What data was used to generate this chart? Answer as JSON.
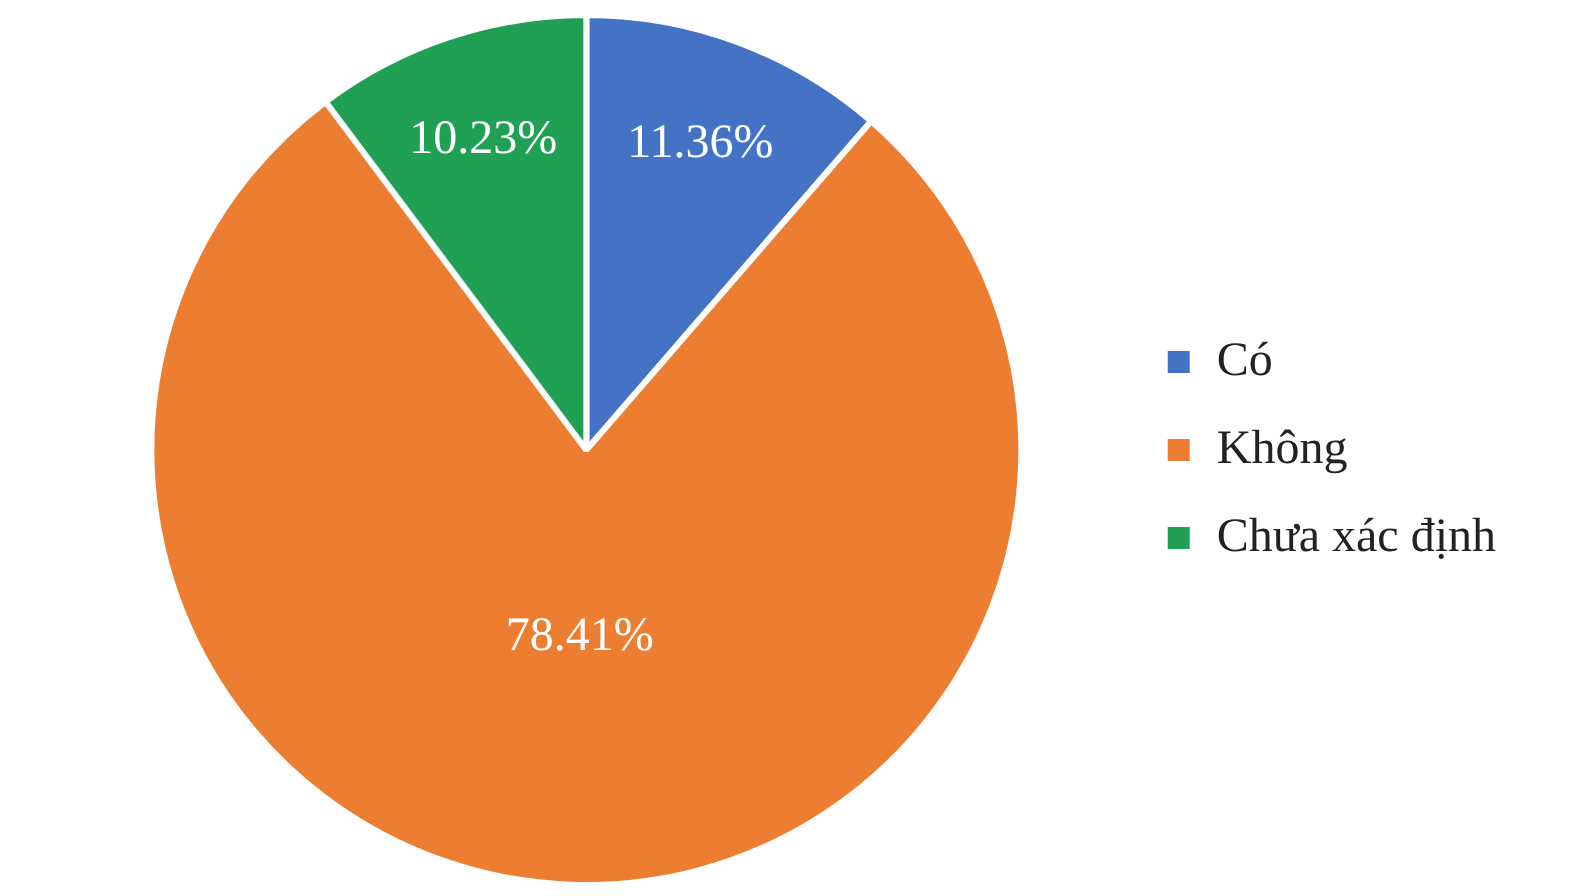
{
  "chart_data": {
    "type": "pie",
    "categories": [
      "Có",
      "Không",
      "Chưa xác định"
    ],
    "values": [
      11.36,
      78.41,
      10.23
    ],
    "colors": [
      "#4472c4",
      "#ed7d31",
      "#1fa055"
    ],
    "value_labels": [
      "11.36%",
      "78.41%",
      "10.23%"
    ],
    "legend": "right"
  }
}
